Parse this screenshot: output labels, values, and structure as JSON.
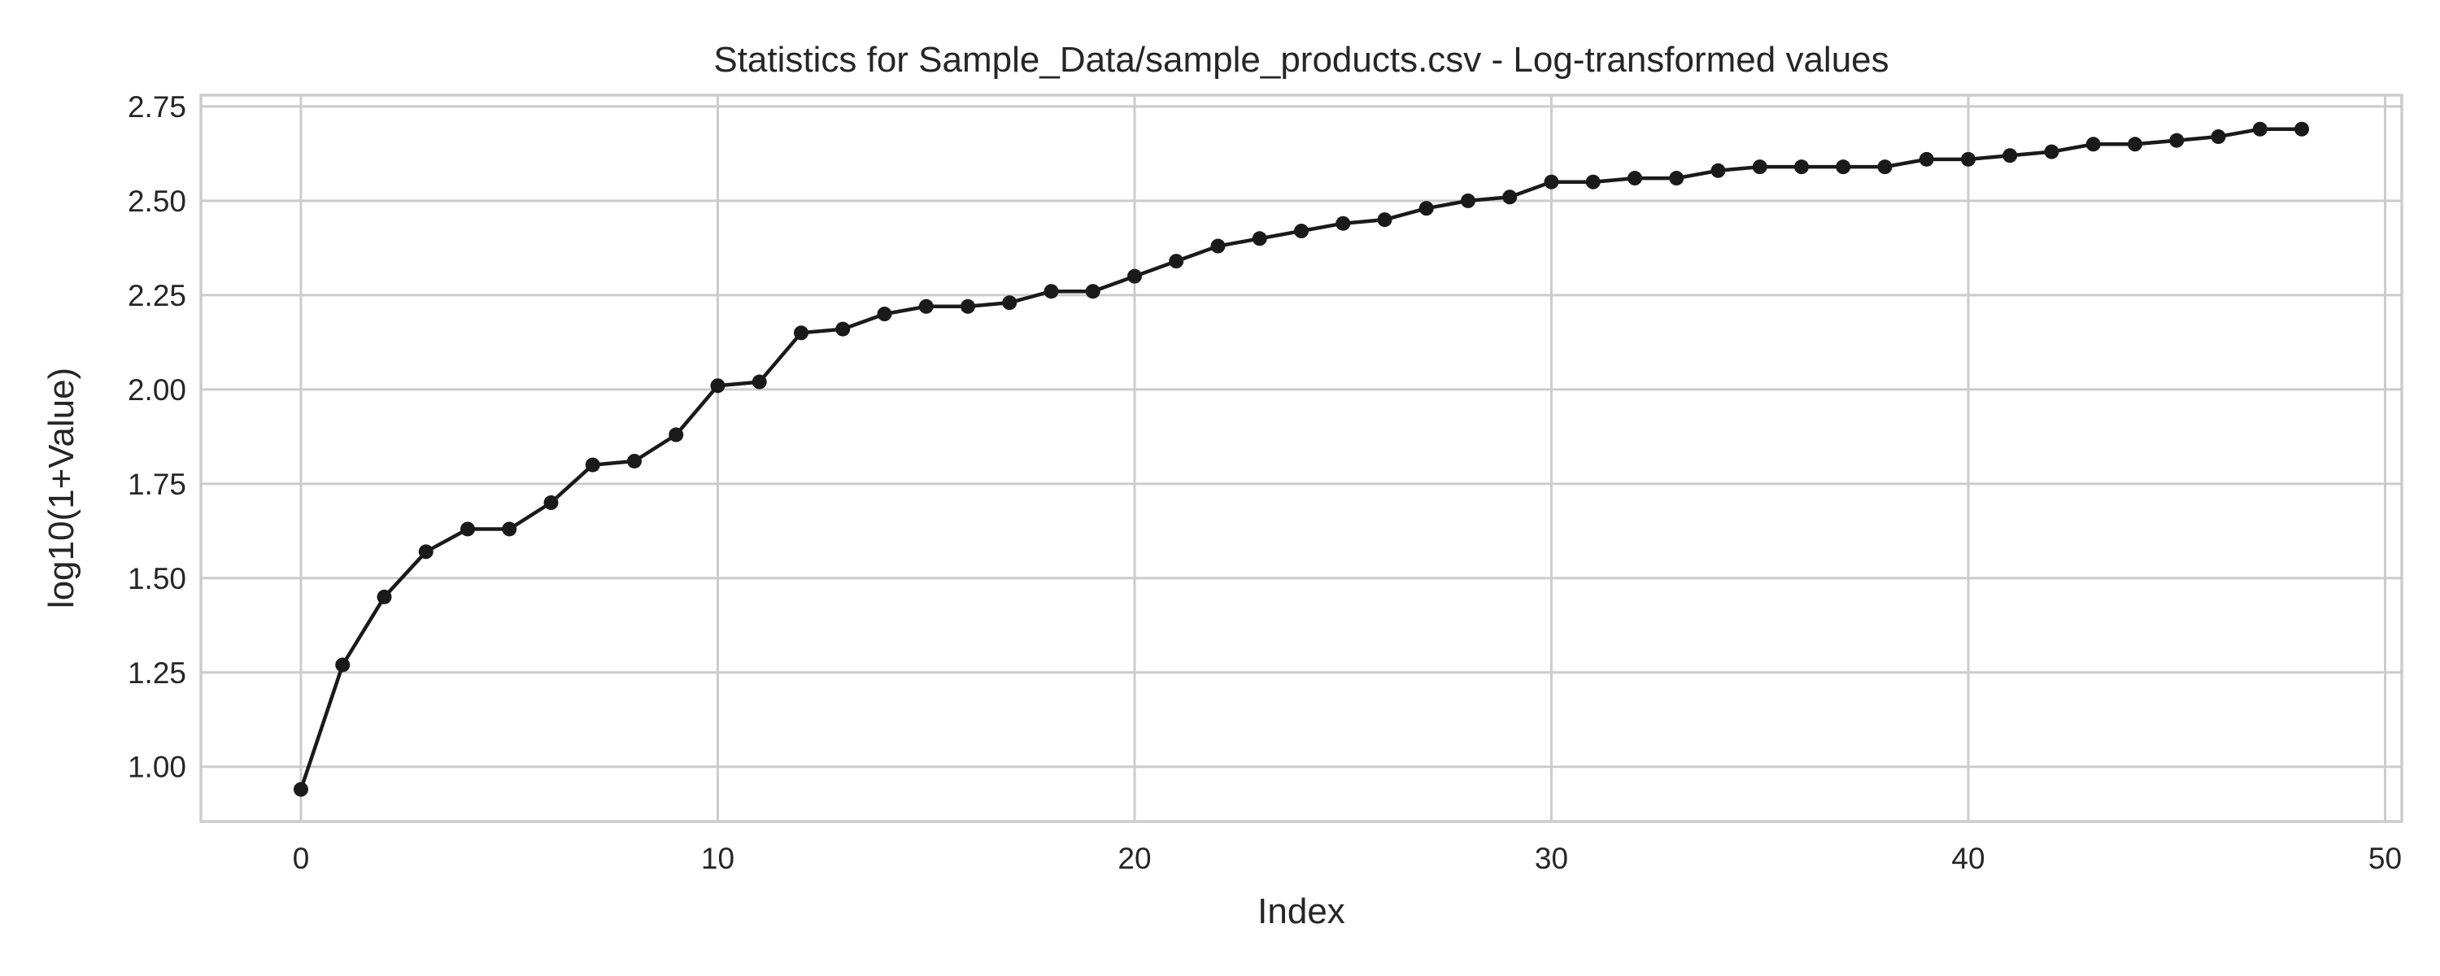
{
  "chart_data": {
    "type": "line",
    "title": "Statistics for Sample_Data/sample_products.csv - Log-transformed values",
    "xlabel": "Index",
    "ylabel": "log10(1+Value)",
    "xlim": [
      -2.4,
      50.4
    ],
    "ylim": [
      0.855,
      2.78
    ],
    "xticks": [
      0,
      10,
      20,
      30,
      40,
      50
    ],
    "xtick_labels": [
      "0",
      "10",
      "20",
      "30",
      "40",
      "50"
    ],
    "yticks": [
      1.0,
      1.25,
      1.5,
      1.75,
      2.0,
      2.25,
      2.5,
      2.75
    ],
    "ytick_labels": [
      "1.00",
      "1.25",
      "1.50",
      "1.75",
      "2.00",
      "2.25",
      "2.50",
      "2.75"
    ],
    "grid": true,
    "colors": {
      "series": "#1a1a1a",
      "grid": "#cccccc",
      "text": "#262626"
    },
    "series": [
      {
        "x": [
          0,
          1,
          2,
          3,
          4,
          5,
          6,
          7,
          8,
          9,
          10,
          11,
          12,
          13,
          14,
          15,
          16,
          17,
          18,
          19,
          20,
          21,
          22,
          23,
          24,
          25,
          26,
          27,
          28,
          29,
          30,
          31,
          32,
          33,
          34,
          35,
          36,
          37,
          38,
          39,
          40,
          41,
          42,
          43,
          44,
          45,
          46,
          47,
          48
        ],
        "values": [
          0.94,
          1.27,
          1.45,
          1.57,
          1.63,
          1.63,
          1.7,
          1.8,
          1.81,
          1.88,
          2.01,
          2.02,
          2.15,
          2.16,
          2.2,
          2.22,
          2.22,
          2.23,
          2.26,
          2.26,
          2.3,
          2.34,
          2.38,
          2.4,
          2.42,
          2.44,
          2.45,
          2.48,
          2.5,
          2.51,
          2.55,
          2.55,
          2.56,
          2.56,
          2.58,
          2.59,
          2.59,
          2.59,
          2.59,
          2.61,
          2.61,
          2.62,
          2.63,
          2.65,
          2.65,
          2.66,
          2.67,
          2.69,
          2.69
        ]
      }
    ]
  }
}
